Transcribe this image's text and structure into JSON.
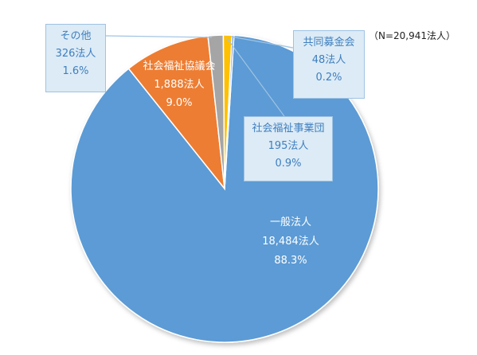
{
  "note": "（N=20,941法人）",
  "chart_data": {
    "type": "pie",
    "title": "",
    "total_label": "（N=20,941法人）",
    "slices": [
      {
        "name": "一般法人",
        "count": "18,484法人",
        "percent": "88.3%",
        "value": 88.3,
        "color": "#5b9bd5"
      },
      {
        "name": "社会福祉協議会",
        "count": "1,888法人",
        "percent": "9.0%",
        "value": 9.0,
        "color": "#ed7d31"
      },
      {
        "name": "その他",
        "count": "326法人",
        "percent": "1.6%",
        "value": 1.6,
        "color": "#a5a5a5"
      },
      {
        "name": "社会福祉事業団",
        "count": "195法人",
        "percent": "0.9%",
        "value": 0.9,
        "color": "#ffc000"
      },
      {
        "name": "共同募金会",
        "count": "48法人",
        "percent": "0.2%",
        "value": 0.2,
        "color": "#4472c4"
      }
    ]
  }
}
